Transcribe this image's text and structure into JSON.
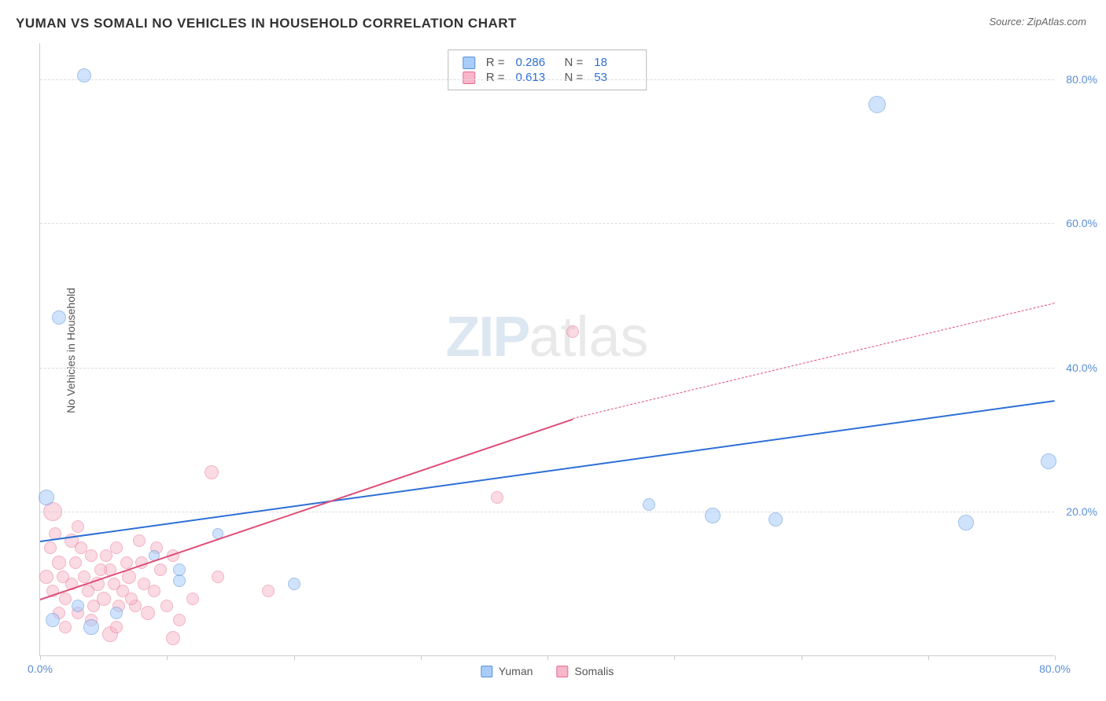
{
  "title": "YUMAN VS SOMALI NO VEHICLES IN HOUSEHOLD CORRELATION CHART",
  "source_prefix": "Source: ",
  "source_name": "ZipAtlas.com",
  "y_axis_title": "No Vehicles in Household",
  "watermark_zip": "ZIP",
  "watermark_atlas": "atlas",
  "chart": {
    "type": "scatter-correlation",
    "background_color": "#ffffff",
    "grid_color": "#dddddd",
    "axis_color": "#cccccc",
    "xlim": [
      0,
      80
    ],
    "ylim": [
      0,
      85
    ],
    "y_ticks": [
      20,
      40,
      60,
      80
    ],
    "y_tick_labels": [
      "20.0%",
      "40.0%",
      "60.0%",
      "80.0%"
    ],
    "y_tick_color": "#5b8fd6",
    "x_ticks": [
      0,
      10,
      20,
      30,
      40,
      50,
      60,
      70,
      80
    ],
    "x_end_labels": {
      "start": "0.0%",
      "end": "80.0%"
    },
    "x_label_color": "#5b8fd6",
    "label_fontsize": 14,
    "title_fontsize": 17
  },
  "series": {
    "yuman": {
      "label": "Yuman",
      "marker_fill": "#a8cdfa",
      "marker_stroke": "#5b8fd6",
      "marker_fill_opacity": 0.55,
      "line_color": "#2d6fd6",
      "R": "0.286",
      "N": "18",
      "regression": {
        "x1": 0,
        "y1": 16,
        "x2": 80,
        "y2": 35.5
      },
      "points": [
        {
          "x": 3.5,
          "y": 80.5,
          "r": 9
        },
        {
          "x": 1.5,
          "y": 47,
          "r": 9
        },
        {
          "x": 66,
          "y": 76.5,
          "r": 11
        },
        {
          "x": 48,
          "y": 21,
          "r": 8
        },
        {
          "x": 53,
          "y": 19.5,
          "r": 10
        },
        {
          "x": 58,
          "y": 19,
          "r": 9
        },
        {
          "x": 73,
          "y": 18.5,
          "r": 10
        },
        {
          "x": 79.5,
          "y": 27,
          "r": 10
        },
        {
          "x": 20,
          "y": 10,
          "r": 8
        },
        {
          "x": 11,
          "y": 10.5,
          "r": 8
        },
        {
          "x": 0.5,
          "y": 22,
          "r": 10
        },
        {
          "x": 1,
          "y": 5,
          "r": 9
        },
        {
          "x": 4,
          "y": 4,
          "r": 10
        },
        {
          "x": 3,
          "y": 7,
          "r": 8
        },
        {
          "x": 6,
          "y": 6,
          "r": 8
        },
        {
          "x": 14,
          "y": 17,
          "r": 7
        },
        {
          "x": 9,
          "y": 14,
          "r": 7
        },
        {
          "x": 11,
          "y": 12,
          "r": 8
        }
      ]
    },
    "somalis": {
      "label": "Somalis",
      "marker_fill": "#f7b6c9",
      "marker_stroke": "#e86a8f",
      "marker_fill_opacity": 0.5,
      "line_color": "#e04d77",
      "R": "0.613",
      "N": "53",
      "regression": {
        "x1": 0,
        "y1": 8,
        "x2": 42,
        "y2": 33
      },
      "regression_extrapolate": {
        "x1": 42,
        "y1": 33,
        "x2": 80,
        "y2": 49
      },
      "points": [
        {
          "x": 42,
          "y": 45,
          "r": 8
        },
        {
          "x": 36,
          "y": 22,
          "r": 8
        },
        {
          "x": 13.5,
          "y": 25.5,
          "r": 9
        },
        {
          "x": 18,
          "y": 9,
          "r": 8
        },
        {
          "x": 14,
          "y": 11,
          "r": 8
        },
        {
          "x": 10.5,
          "y": 2.5,
          "r": 9
        },
        {
          "x": 5.5,
          "y": 3,
          "r": 10
        },
        {
          "x": 1,
          "y": 20,
          "r": 12
        },
        {
          "x": 0.5,
          "y": 11,
          "r": 9
        },
        {
          "x": 1.5,
          "y": 13,
          "r": 9
        },
        {
          "x": 2.5,
          "y": 16,
          "r": 9
        },
        {
          "x": 3,
          "y": 18,
          "r": 8
        },
        {
          "x": 4,
          "y": 14,
          "r": 8
        },
        {
          "x": 4.5,
          "y": 10,
          "r": 9
        },
        {
          "x": 5,
          "y": 8,
          "r": 9
        },
        {
          "x": 5.5,
          "y": 12,
          "r": 8
        },
        {
          "x": 6,
          "y": 15,
          "r": 8
        },
        {
          "x": 6.5,
          "y": 9,
          "r": 8
        },
        {
          "x": 7,
          "y": 11,
          "r": 9
        },
        {
          "x": 7.5,
          "y": 7,
          "r": 8
        },
        {
          "x": 8,
          "y": 13,
          "r": 8
        },
        {
          "x": 8.5,
          "y": 6,
          "r": 9
        },
        {
          "x": 9,
          "y": 9,
          "r": 8
        },
        {
          "x": 2,
          "y": 8,
          "r": 8
        },
        {
          "x": 1,
          "y": 9,
          "r": 8
        },
        {
          "x": 3,
          "y": 6,
          "r": 8
        },
        {
          "x": 3.5,
          "y": 11,
          "r": 8
        },
        {
          "x": 10,
          "y": 7,
          "r": 8
        },
        {
          "x": 11,
          "y": 5,
          "r": 8
        },
        {
          "x": 12,
          "y": 8,
          "r": 8
        },
        {
          "x": 2,
          "y": 4,
          "r": 8
        },
        {
          "x": 4,
          "y": 5,
          "r": 8
        },
        {
          "x": 6,
          "y": 4,
          "r": 8
        },
        {
          "x": 1.5,
          "y": 6,
          "r": 8
        },
        {
          "x": 2.5,
          "y": 10,
          "r": 8
        },
        {
          "x": 0.8,
          "y": 15,
          "r": 8
        },
        {
          "x": 3.8,
          "y": 9,
          "r": 8
        },
        {
          "x": 5.2,
          "y": 14,
          "r": 8
        },
        {
          "x": 7.8,
          "y": 16,
          "r": 8
        },
        {
          "x": 9.5,
          "y": 12,
          "r": 8
        },
        {
          "x": 10.5,
          "y": 14,
          "r": 8
        },
        {
          "x": 1.2,
          "y": 17,
          "r": 8
        },
        {
          "x": 6.8,
          "y": 13,
          "r": 8
        },
        {
          "x": 4.2,
          "y": 7,
          "r": 8
        },
        {
          "x": 2.8,
          "y": 13,
          "r": 8
        },
        {
          "x": 8.2,
          "y": 10,
          "r": 8
        },
        {
          "x": 3.2,
          "y": 15,
          "r": 8
        },
        {
          "x": 5.8,
          "y": 10,
          "r": 8
        },
        {
          "x": 7.2,
          "y": 8,
          "r": 8
        },
        {
          "x": 9.2,
          "y": 15,
          "r": 8
        },
        {
          "x": 1.8,
          "y": 11,
          "r": 8
        },
        {
          "x": 4.8,
          "y": 12,
          "r": 8
        },
        {
          "x": 6.2,
          "y": 7,
          "r": 8
        }
      ]
    }
  },
  "stats_labels": {
    "R": "R =",
    "N": "N ="
  }
}
